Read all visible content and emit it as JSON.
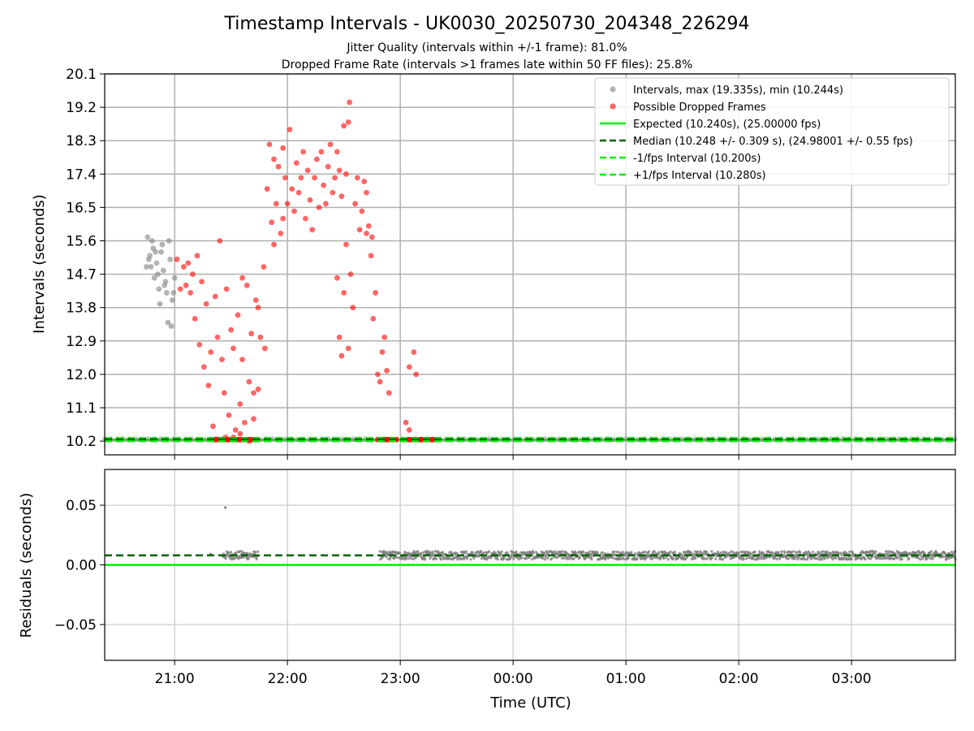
{
  "chart_data": [
    {
      "type": "scatter",
      "panel": "top",
      "title": "Timestamp Intervals - UK0030_20250730_204348_226294",
      "subtitle_lines": [
        "Jitter Quality (intervals within +/-1 frame): 81.0%",
        "Dropped Frame Rate (intervals >1 frames late within 50 FF files): 25.8%"
      ],
      "ylabel": "Intervals (seconds)",
      "ylim": [
        9.83,
        20.1
      ],
      "yticks": [
        "10.2",
        "11.1",
        "12.0",
        "12.9",
        "13.8",
        "14.7",
        "15.6",
        "16.5",
        "17.4",
        "18.3",
        "19.2",
        "20.1"
      ],
      "grid": true,
      "legend_position": "upper-right",
      "x_unit": "hours after 21:00 UTC",
      "legend": [
        {
          "label": "Intervals, max (19.335s), min (10.244s)",
          "kind": "dot",
          "color": "#808080"
        },
        {
          "label": "Possible Dropped Frames",
          "kind": "dot",
          "color": "#ff0000"
        },
        {
          "label": "Expected (10.240s), (25.00000 fps)",
          "kind": "line",
          "color": "#00ee00"
        },
        {
          "label": "Median (10.248 +/- 0.309 s), (24.98001 +/- 0.55 fps)",
          "kind": "dash",
          "color": "#006400"
        },
        {
          "label": "-1/fps Interval (10.200s)",
          "kind": "dash",
          "color": "#00ee00"
        },
        {
          "label": "+1/fps Interval (10.280s)",
          "kind": "dash",
          "color": "#00ee00"
        }
      ],
      "series": [
        {
          "name": "Intervals, max (19.335s), min (10.244s)",
          "color": "#808080",
          "points": [
            [
              -0.25,
              14.9
            ],
            [
              -0.22,
              15.2
            ],
            [
              -0.2,
              15.6
            ],
            [
              -0.18,
              14.6
            ],
            [
              -0.16,
              15.0
            ],
            [
              -0.14,
              14.3
            ],
            [
              -0.12,
              15.3
            ],
            [
              -0.1,
              14.8
            ],
            [
              -0.08,
              14.5
            ],
            [
              -0.06,
              13.4
            ],
            [
              -0.04,
              15.1
            ],
            [
              -0.02,
              14.0
            ],
            [
              -0.24,
              15.7
            ],
            [
              -0.19,
              15.4
            ],
            [
              -0.15,
              14.7
            ],
            [
              -0.11,
              15.5
            ],
            [
              -0.07,
              14.2
            ],
            [
              -0.03,
              13.3
            ],
            [
              -0.21,
              14.9
            ],
            [
              -0.17,
              15.3
            ],
            [
              -0.13,
              13.9
            ],
            [
              -0.09,
              14.4
            ],
            [
              -0.05,
              15.6
            ],
            [
              0.0,
              14.6
            ],
            [
              -0.23,
              15.1
            ],
            [
              -0.01,
              14.2
            ]
          ]
        },
        {
          "name": "Possible Dropped Frames",
          "color": "#ff0000",
          "points": [
            [
              0.02,
              15.1
            ],
            [
              0.05,
              14.3
            ],
            [
              0.08,
              14.9
            ],
            [
              0.1,
              14.4
            ],
            [
              0.12,
              15.0
            ],
            [
              0.14,
              14.2
            ],
            [
              0.16,
              14.7
            ],
            [
              0.18,
              13.5
            ],
            [
              0.2,
              15.2
            ],
            [
              0.22,
              12.8
            ],
            [
              0.24,
              14.5
            ],
            [
              0.26,
              12.2
            ],
            [
              0.28,
              13.9
            ],
            [
              0.3,
              11.7
            ],
            [
              0.32,
              12.6
            ],
            [
              0.34,
              10.6
            ],
            [
              0.36,
              14.1
            ],
            [
              0.38,
              13.0
            ],
            [
              0.4,
              15.6
            ],
            [
              0.42,
              12.4
            ],
            [
              0.44,
              11.5
            ],
            [
              0.46,
              14.3
            ],
            [
              0.48,
              10.9
            ],
            [
              0.5,
              13.2
            ],
            [
              0.52,
              12.7
            ],
            [
              0.54,
              10.5
            ],
            [
              0.56,
              13.6
            ],
            [
              0.58,
              11.2
            ],
            [
              0.6,
              12.4
            ],
            [
              0.62,
              10.7
            ],
            [
              0.64,
              14.4
            ],
            [
              0.66,
              11.8
            ],
            [
              0.68,
              13.1
            ],
            [
              0.7,
              10.8
            ],
            [
              0.72,
              14.0
            ],
            [
              0.74,
              11.6
            ],
            [
              0.76,
              13.0
            ],
            [
              0.79,
              14.9
            ],
            [
              0.82,
              17.0
            ],
            [
              0.84,
              18.2
            ],
            [
              0.86,
              16.1
            ],
            [
              0.88,
              17.8
            ],
            [
              0.9,
              16.6
            ],
            [
              0.92,
              17.6
            ],
            [
              0.94,
              15.8
            ],
            [
              0.96,
              18.1
            ],
            [
              0.98,
              17.3
            ],
            [
              1.0,
              16.6
            ],
            [
              1.02,
              18.6
            ],
            [
              1.04,
              17.0
            ],
            [
              1.06,
              16.4
            ],
            [
              1.08,
              17.7
            ],
            [
              1.1,
              16.9
            ],
            [
              1.12,
              17.3
            ],
            [
              1.14,
              18.0
            ],
            [
              1.16,
              16.2
            ],
            [
              1.18,
              17.5
            ],
            [
              1.2,
              16.7
            ],
            [
              1.22,
              15.9
            ],
            [
              1.24,
              17.3
            ],
            [
              1.26,
              17.8
            ],
            [
              1.28,
              16.5
            ],
            [
              1.3,
              18.0
            ],
            [
              1.32,
              17.1
            ],
            [
              1.34,
              16.6
            ],
            [
              1.36,
              17.6
            ],
            [
              1.38,
              18.2
            ],
            [
              1.4,
              16.9
            ],
            [
              1.42,
              17.3
            ],
            [
              1.44,
              18.0
            ],
            [
              1.46,
              17.5
            ],
            [
              1.48,
              16.8
            ],
            [
              1.5,
              18.7
            ],
            [
              1.52,
              17.4
            ],
            [
              1.54,
              18.8
            ],
            [
              1.55,
              19.335
            ],
            [
              1.44,
              14.6
            ],
            [
              1.46,
              13.0
            ],
            [
              1.48,
              12.5
            ],
            [
              1.5,
              14.2
            ],
            [
              1.52,
              15.5
            ],
            [
              1.54,
              12.7
            ],
            [
              1.56,
              14.7
            ],
            [
              1.58,
              13.8
            ],
            [
              1.6,
              16.6
            ],
            [
              1.62,
              17.3
            ],
            [
              1.64,
              15.9
            ],
            [
              1.66,
              16.4
            ],
            [
              1.68,
              17.2
            ],
            [
              1.7,
              15.8
            ],
            [
              1.72,
              16.0
            ],
            [
              1.74,
              15.2
            ],
            [
              1.76,
              13.5
            ],
            [
              1.78,
              14.2
            ],
            [
              1.8,
              12.0
            ],
            [
              1.82,
              11.8
            ],
            [
              1.84,
              12.6
            ],
            [
              1.86,
              13.0
            ],
            [
              1.88,
              12.1
            ],
            [
              1.9,
              11.5
            ],
            [
              2.08,
              12.2
            ],
            [
              2.12,
              12.6
            ],
            [
              2.14,
              12.0
            ],
            [
              0.6,
              14.6
            ],
            [
              0.7,
              11.5
            ],
            [
              0.74,
              13.8
            ],
            [
              0.8,
              12.7
            ],
            [
              0.88,
              15.5
            ],
            [
              0.96,
              16.2
            ],
            [
              1.7,
              16.9
            ],
            [
              1.75,
              15.7
            ],
            [
              0.45,
              10.3
            ],
            [
              0.52,
              10.3
            ],
            [
              0.58,
              10.4
            ],
            [
              0.66,
              10.2
            ],
            [
              2.05,
              10.7
            ],
            [
              2.08,
              10.5
            ]
          ]
        },
        {
          "name": "dropped-frame-band",
          "color": "#ff0000",
          "x_ranges": [
            [
              0.35,
              0.74
            ],
            [
              1.8,
              1.97
            ],
            [
              2.06,
              2.33
            ]
          ],
          "y": 10.24
        }
      ],
      "reference_lines": {
        "expected": 10.24,
        "median": 10.248,
        "minus_1fps": 10.2,
        "plus_1fps": 10.28
      }
    },
    {
      "type": "scatter",
      "panel": "bottom",
      "ylabel": "Residuals (seconds)",
      "ylim": [
        -0.08,
        0.08
      ],
      "yticks": [
        "−0.05",
        "0.00",
        "0.05"
      ],
      "xlabel": "Time (UTC)",
      "xticks": [
        "21:00",
        "22:00",
        "23:00",
        "00:00",
        "01:00",
        "02:00",
        "03:00"
      ],
      "xlim": [
        -0.62,
        6.92
      ],
      "grid": true,
      "reference_lines": {
        "zero": 0.0,
        "median_residual": 0.008
      },
      "series": [
        {
          "name": "residuals",
          "color": "#808080",
          "clusters": [
            {
              "x_range": [
                0.43,
                0.74
              ],
              "y": 0.008
            },
            {
              "x_range": [
                1.82,
                6.92
              ],
              "y": 0.008
            }
          ],
          "outliers": [
            [
              0.45,
              0.048
            ],
            [
              0.32,
              0.009
            ]
          ]
        }
      ]
    }
  ]
}
